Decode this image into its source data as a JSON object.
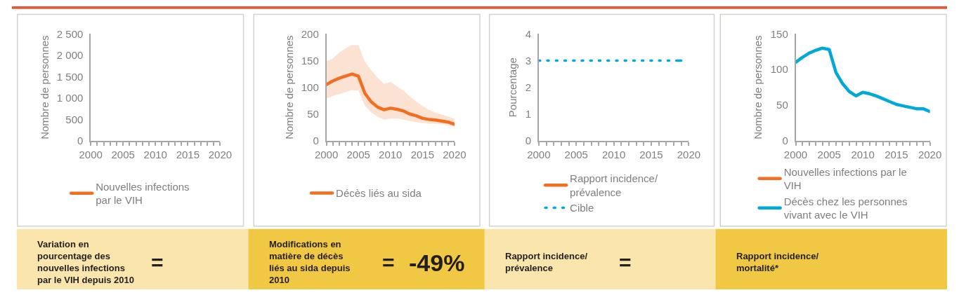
{
  "chart_data": [
    {
      "type": "line",
      "ylabel": "Nombre de personnes",
      "categories": [
        "2000",
        null,
        null,
        null,
        null,
        "2005",
        null,
        null,
        null,
        null,
        "2010",
        null,
        null,
        null,
        null,
        "2015",
        null,
        null,
        null,
        null,
        "2020"
      ],
      "ylim": [
        0,
        2500
      ],
      "yticks": [
        0,
        500,
        {
          "value": 1000,
          "label": "1 000"
        },
        {
          "value": 1500,
          "label": "1 500"
        },
        {
          "value": 2000,
          "label": "2 000"
        },
        {
          "value": 2500,
          "label": "2 500"
        }
      ],
      "series": [
        {
          "name": "Nouvelles infections par le VIH",
          "color": "#f26f21",
          "values": [
            null,
            null,
            null,
            null,
            null,
            null,
            null,
            null,
            null,
            null,
            null,
            null,
            null,
            null,
            null,
            null,
            null,
            null,
            null,
            null,
            null
          ]
        }
      ],
      "legend": "bottom",
      "annotations": [
        "Variation en pourcentage des nouvelles infections par le VIH depuis 2010",
        "="
      ]
    },
    {
      "type": "line",
      "ylabel": "Nombre de personnes",
      "x": [
        2000,
        2001,
        2002,
        2003,
        2004,
        2005,
        2006,
        2007,
        2008,
        2009,
        2010,
        2011,
        2012,
        2013,
        2014,
        2015,
        2016,
        2017,
        2018,
        2019,
        2020
      ],
      "xlim": [
        2000,
        2020
      ],
      "xticks": [
        2000,
        {
          "value": 2001,
          "label": null
        },
        {
          "value": 2002,
          "label": null
        },
        {
          "value": 2003,
          "label": null
        },
        {
          "value": 2004,
          "label": null
        },
        2005,
        {
          "value": 2006,
          "label": null
        },
        {
          "value": 2007,
          "label": null
        },
        {
          "value": 2008,
          "label": null
        },
        {
          "value": 2009,
          "label": null
        },
        2010,
        {
          "value": 2011,
          "label": null
        },
        {
          "value": 2012,
          "label": null
        },
        {
          "value": 2013,
          "label": null
        },
        {
          "value": 2014,
          "label": null
        },
        2015,
        {
          "value": 2016,
          "label": null
        },
        {
          "value": 2017,
          "label": null
        },
        {
          "value": 2018,
          "label": null
        },
        {
          "value": 2019,
          "label": null
        },
        2020
      ],
      "ylim": [
        0,
        200
      ],
      "yticks": [
        0,
        50,
        100,
        150,
        200
      ],
      "series": [
        {
          "name": "Décès liés au sida",
          "color": "#f26f21",
          "values": [
            105,
            112,
            117,
            121,
            125,
            121,
            89,
            73,
            63,
            58,
            61,
            59,
            56,
            50,
            47,
            42,
            40,
            39,
            37,
            35,
            31
          ],
          "upper": [
            149,
            154,
            165,
            173,
            179,
            179,
            148,
            132,
            118,
            106,
            110,
            102,
            94,
            83,
            74,
            65,
            58,
            53,
            49,
            45,
            41
          ],
          "lower": [
            79,
            84,
            87,
            91,
            95,
            94,
            66,
            53,
            45,
            40,
            42,
            42,
            40,
            37,
            35,
            34,
            32,
            32,
            31,
            29,
            26
          ]
        }
      ],
      "legend": "bottom",
      "annotations": [
        "Modifications en matière de décès liés au sida depuis 2010",
        "=",
        "-49%"
      ]
    },
    {
      "type": "line",
      "ylabel": "Pourcentage",
      "x": [
        2000,
        2001,
        2002,
        2003,
        2004,
        2005,
        2006,
        2007,
        2008,
        2009,
        2010,
        2011,
        2012,
        2013,
        2014,
        2015,
        2016,
        2017,
        2018,
        2019
      ],
      "xlim": [
        2000,
        2020
      ],
      "xticks": [
        2000,
        {
          "value": 2001,
          "label": null
        },
        {
          "value": 2002,
          "label": null
        },
        {
          "value": 2003,
          "label": null
        },
        {
          "value": 2004,
          "label": null
        },
        2005,
        {
          "value": 2006,
          "label": null
        },
        {
          "value": 2007,
          "label": null
        },
        {
          "value": 2008,
          "label": null
        },
        {
          "value": 2009,
          "label": null
        },
        2010,
        {
          "value": 2011,
          "label": null
        },
        {
          "value": 2012,
          "label": null
        },
        {
          "value": 2013,
          "label": null
        },
        {
          "value": 2014,
          "label": null
        },
        2015,
        {
          "value": 2016,
          "label": null
        },
        {
          "value": 2017,
          "label": null
        },
        {
          "value": 2018,
          "label": null
        },
        {
          "value": 2019,
          "label": null
        },
        2020
      ],
      "ylim": [
        0,
        4
      ],
      "yticks": [
        0,
        1,
        2,
        3,
        4
      ],
      "series": [
        {
          "name": "Rapport incidence/prévalence",
          "color": "#f26f21",
          "values": [
            null,
            null,
            null,
            null,
            null,
            null,
            null,
            null,
            null,
            null,
            null,
            null,
            null,
            null,
            null,
            null,
            null,
            null,
            null,
            null
          ]
        },
        {
          "name": "Cible",
          "color": "#00a9d8",
          "line_style": "dotted",
          "values": [
            3,
            3,
            3,
            3,
            3,
            3,
            3,
            3,
            3,
            3,
            3,
            3,
            3,
            3,
            3,
            3,
            3,
            3,
            3,
            3
          ]
        }
      ],
      "legend": "bottom",
      "annotations": [
        "Rapport incidence/prévalence",
        "="
      ]
    },
    {
      "type": "line",
      "ylabel": "Nombre de personnes",
      "x": [
        2000,
        2001,
        2002,
        2003,
        2004,
        2005,
        2006,
        2007,
        2008,
        2009,
        2010,
        2011,
        2012,
        2013,
        2014,
        2015,
        2016,
        2017,
        2018,
        2019,
        2020
      ],
      "xlim": [
        2000,
        2020
      ],
      "xticks": [
        2000,
        {
          "value": 2001,
          "label": null
        },
        {
          "value": 2002,
          "label": null
        },
        {
          "value": 2003,
          "label": null
        },
        {
          "value": 2004,
          "label": null
        },
        2005,
        {
          "value": 2006,
          "label": null
        },
        {
          "value": 2007,
          "label": null
        },
        {
          "value": 2008,
          "label": null
        },
        {
          "value": 2009,
          "label": null
        },
        2010,
        {
          "value": 2011,
          "label": null
        },
        {
          "value": 2012,
          "label": null
        },
        {
          "value": 2013,
          "label": null
        },
        {
          "value": 2014,
          "label": null
        },
        2015,
        {
          "value": 2016,
          "label": null
        },
        {
          "value": 2017,
          "label": null
        },
        {
          "value": 2018,
          "label": null
        },
        {
          "value": 2019,
          "label": null
        },
        2020
      ],
      "ylim": [
        0,
        150
      ],
      "yticks": [
        0,
        50,
        100,
        150
      ],
      "series": [
        {
          "name": "Nouvelles infections par le VIH",
          "color": "#f26f21",
          "values": [
            null,
            null,
            null,
            null,
            null,
            null,
            null,
            null,
            null,
            null,
            null,
            null,
            null,
            null,
            null,
            null,
            null,
            null,
            null,
            null,
            null
          ]
        },
        {
          "name": "Décès chez les personnes vivant avec le VIH",
          "color": "#00a9d8",
          "values": [
            110,
            117,
            123,
            127,
            130,
            128,
            96,
            80,
            69,
            63,
            68,
            66,
            63,
            59,
            55,
            51,
            49,
            47,
            45,
            45,
            41
          ]
        }
      ],
      "legend": "bottom",
      "annotations": [
        "Rapport incidence/mortalité*"
      ]
    }
  ]
}
